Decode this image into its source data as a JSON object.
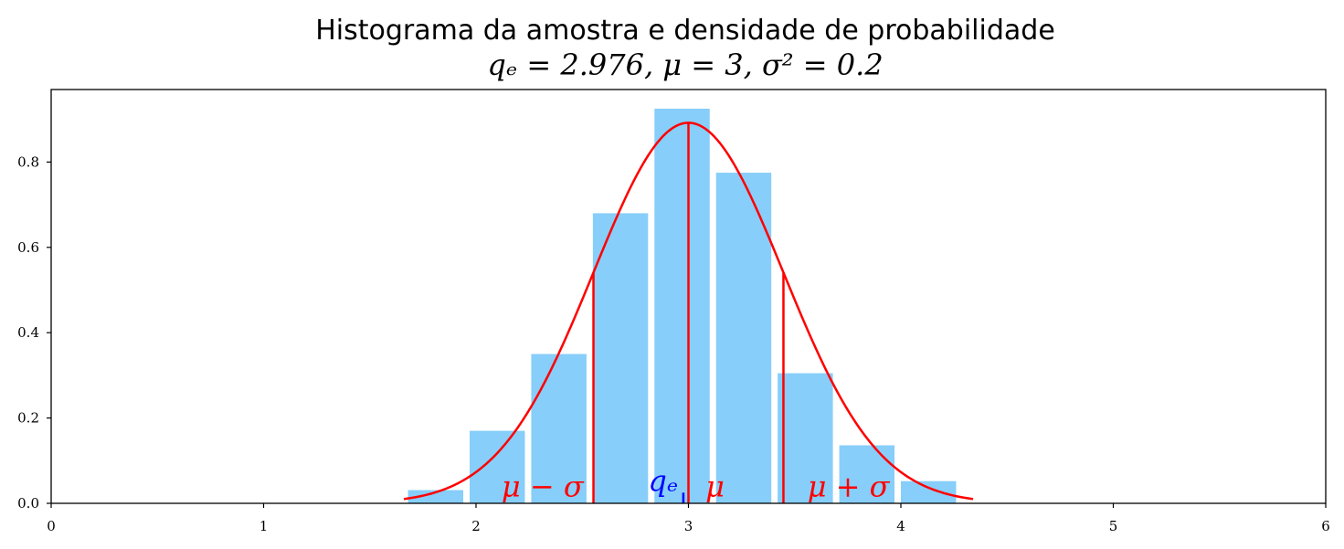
{
  "chart_data": {
    "type": "bar",
    "title": "Histograma da amostra e densidade de probabilidade",
    "subtitle": "qₑ = 2.976, μ = 3, σ² = 0.2",
    "xlabel": "",
    "ylabel": "",
    "xlim": [
      0,
      6
    ],
    "ylim": [
      0,
      0.97
    ],
    "x_ticks": [
      "0",
      "1",
      "2",
      "3",
      "4",
      "5",
      "6"
    ],
    "y_ticks": [
      "0.0",
      "0.2",
      "0.4",
      "0.6",
      "0.8"
    ],
    "grid": false,
    "bar_color": "#87CEFA",
    "bars": [
      {
        "x0": 1.68,
        "x1": 1.94,
        "value": 0.031
      },
      {
        "x0": 1.97,
        "x1": 2.23,
        "value": 0.17
      },
      {
        "x0": 2.26,
        "x1": 2.52,
        "value": 0.35
      },
      {
        "x0": 2.55,
        "x1": 2.81,
        "value": 0.68
      },
      {
        "x0": 2.84,
        "x1": 3.1,
        "value": 0.925
      },
      {
        "x0": 3.13,
        "x1": 3.39,
        "value": 0.775
      },
      {
        "x0": 3.42,
        "x1": 3.68,
        "value": 0.305
      },
      {
        "x0": 3.71,
        "x1": 3.97,
        "value": 0.136
      },
      {
        "x0": 4.0,
        "x1": 4.26,
        "value": 0.052
      }
    ],
    "density": {
      "name": "densidade normal",
      "mu": 3,
      "sigma2": 0.2,
      "x_range": [
        1.66,
        4.34
      ],
      "color": "#ff0000"
    },
    "vlines": [
      {
        "x": 2.5528,
        "color": "#ff0000"
      },
      {
        "x": 3.0,
        "color": "#ff0000"
      },
      {
        "x": 3.4472,
        "color": "#ff0000"
      },
      {
        "x": 2.976,
        "color": "#0000ff",
        "height": 0.025
      }
    ],
    "annotations": [
      {
        "text": "μ − σ",
        "x": 2.12,
        "y": 0.008,
        "color": "#ff0000"
      },
      {
        "text": "qₑ",
        "x": 2.81,
        "y": 0.02,
        "color": "#0000ff"
      },
      {
        "text": "μ",
        "x": 3.08,
        "y": 0.008,
        "color": "#ff0000"
      },
      {
        "text": "μ + σ",
        "x": 3.56,
        "y": 0.008,
        "color": "#ff0000"
      }
    ]
  }
}
